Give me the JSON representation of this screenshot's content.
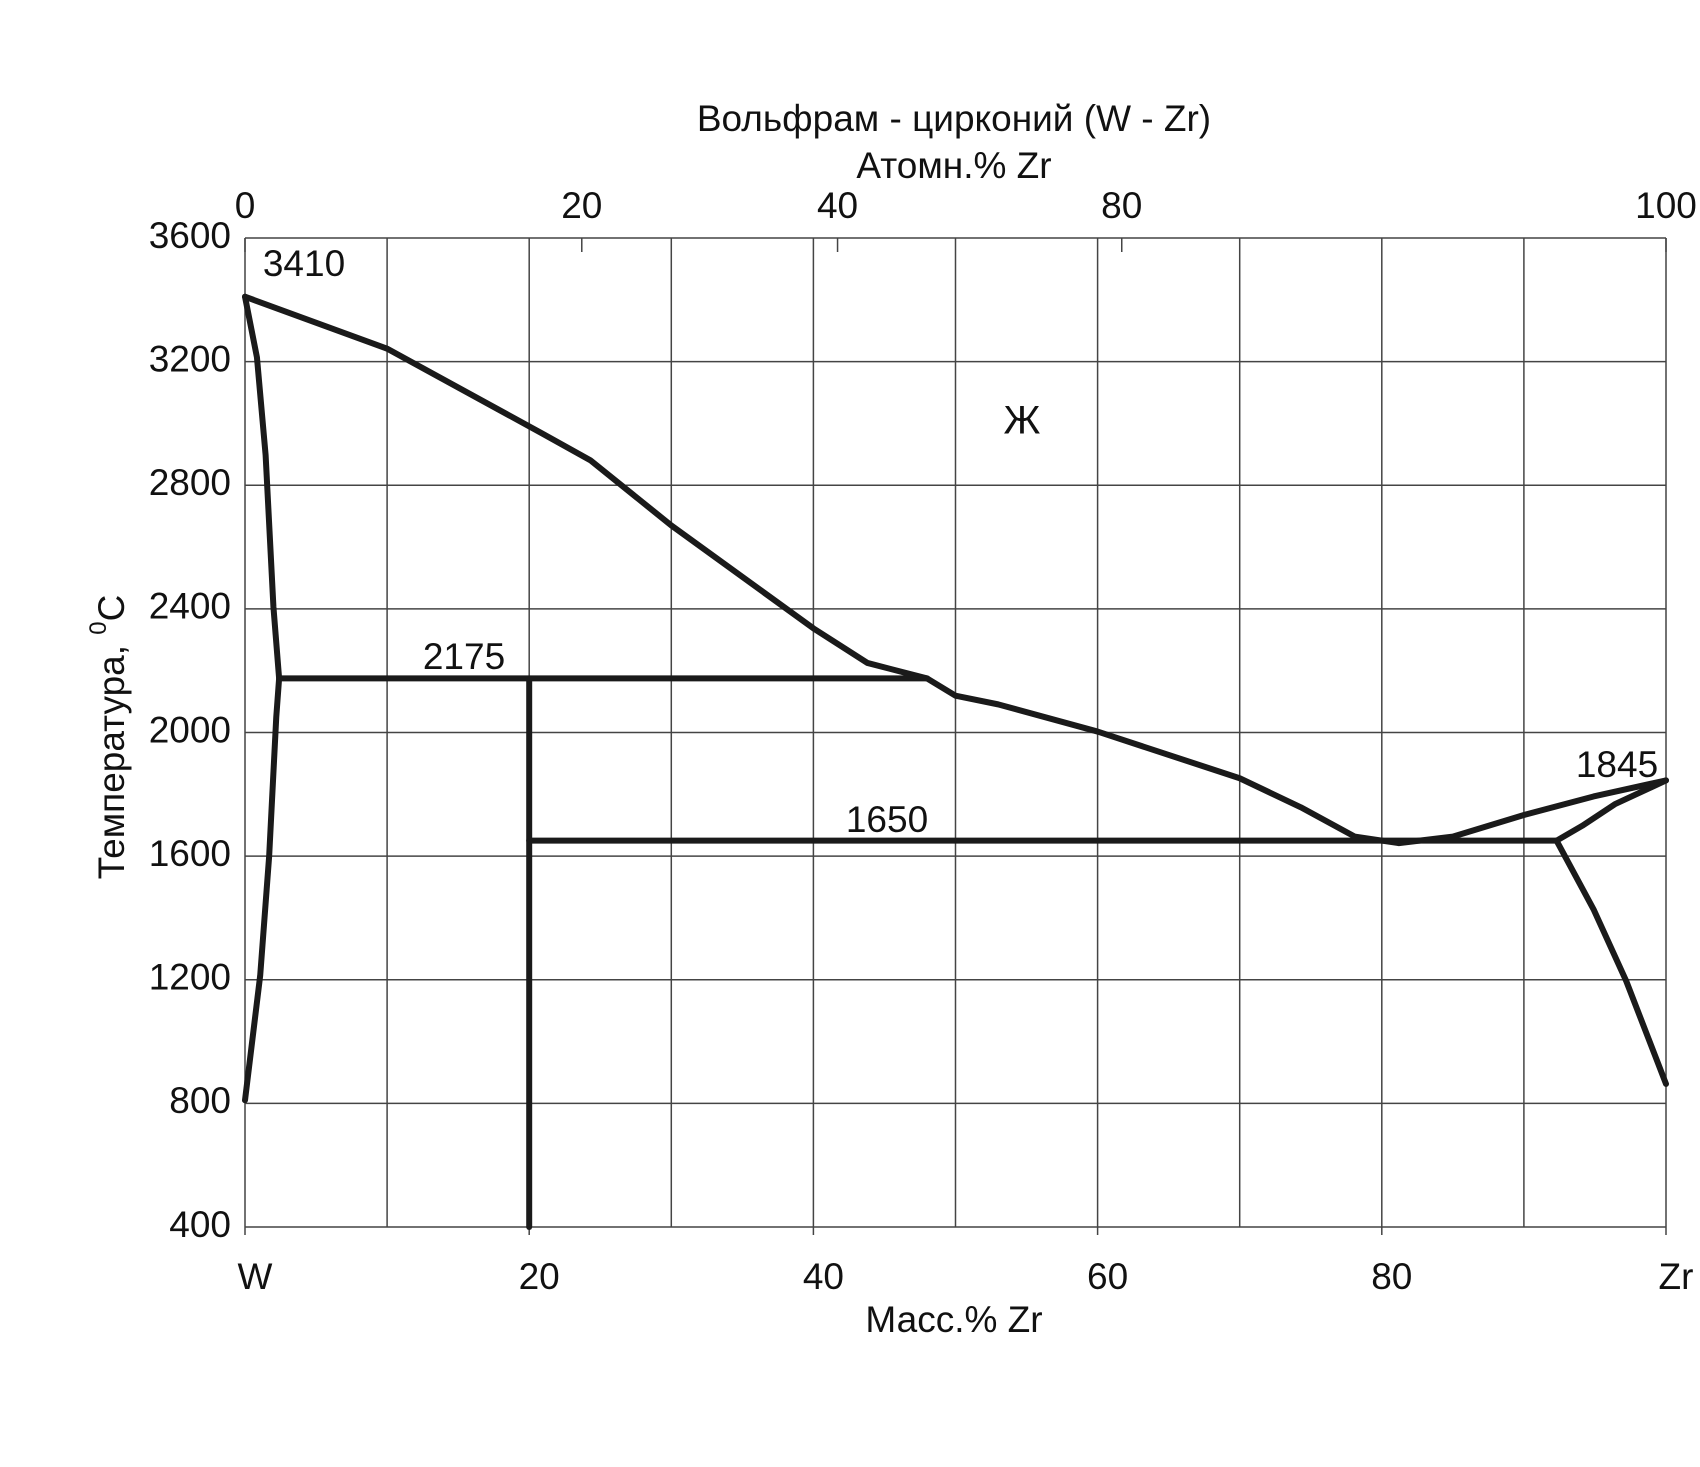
{
  "chart_data": {
    "type": "line",
    "title": "Вольфрам - цирконий (W - Zr)",
    "x2label": "Атомн.% Zr",
    "xlabel": "Масс.% Zr",
    "ylabel": "Температура, ",
    "ylabel_sup": "0",
    "ylabel_unit": "C",
    "annotations": [
      "Ж"
    ],
    "xlim": [
      0,
      100
    ],
    "ylim": [
      400,
      3600
    ],
    "xticks": [
      {
        "value": 0,
        "label": "W"
      },
      20,
      40,
      60,
      80,
      {
        "value": 100,
        "label": "Zr"
      }
    ],
    "xgrid": [
      0,
      10,
      20,
      30,
      40,
      50,
      60,
      70,
      80,
      90,
      100
    ],
    "x2ticks": [
      0,
      {
        "value": 23.7,
        "label": "20"
      },
      {
        "value": 41.7,
        "label": "40"
      },
      {
        "value": 61.7,
        "label": "80"
      },
      100
    ],
    "yticks": [
      400,
      800,
      1200,
      1600,
      2000,
      2400,
      2800,
      3200,
      3600
    ],
    "grid": true,
    "series": [
      {
        "color": "#1a1a1a",
        "x": [
          0,
          10,
          20.9,
          24.3,
          30,
          40,
          43.8,
          48,
          50,
          53,
          60,
          70,
          74.3,
          78.1,
          81.2,
          85,
          90,
          94.9,
          100
        ],
        "values": [
          3410,
          3242,
          2968,
          2881,
          2670,
          2337,
          2225,
          2175,
          2119,
          2091,
          2003,
          1852,
          1758,
          1663,
          1642,
          1663,
          1733,
          1793,
          1845
        ]
      },
      {
        "color": "#1a1a1a",
        "x": [
          0,
          0.84,
          1.45,
          2,
          2.4,
          2.2,
          1.7,
          1.07,
          0
        ],
        "values": [
          3410,
          3214,
          2898,
          2407,
          2175,
          2050,
          1600,
          1214,
          810
        ]
      },
      {
        "color": "#1a1a1a",
        "x": [
          2.4,
          48
        ],
        "values": [
          2175,
          2175
        ]
      },
      {
        "color": "#1a1a1a",
        "x": [
          20,
          20
        ],
        "values": [
          2175,
          400
        ]
      },
      {
        "color": "#1a1a1a",
        "x": [
          20,
          92.3
        ],
        "values": [
          1650,
          1650
        ]
      },
      {
        "color": "#1a1a1a",
        "x": [
          92.3,
          94.1,
          96.4,
          100
        ],
        "values": [
          1650,
          1698,
          1768,
          1845
        ]
      },
      {
        "color": "#1a1a1a",
        "x": [
          92.3,
          94.9,
          97.2,
          100
        ],
        "values": [
          1650,
          1428,
          1196,
          863
        ]
      }
    ]
  }
}
